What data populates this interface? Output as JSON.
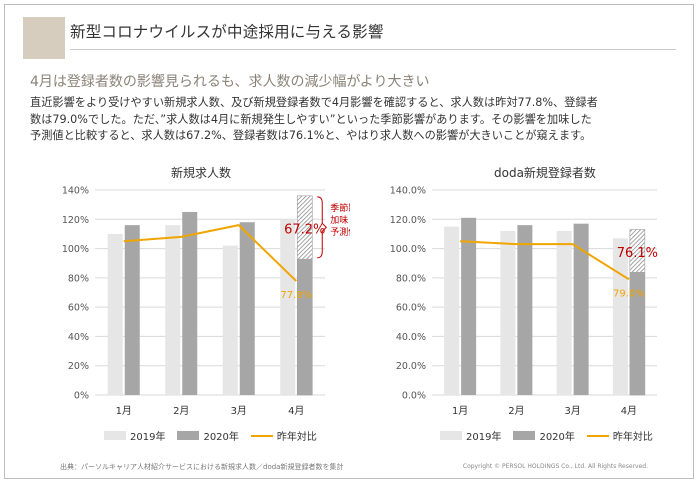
{
  "slide": {
    "title": "新型コロナウイルスが中途採用に与える影響",
    "headline": "4月は登録者数の影響見られるも、求人数の減少幅がより大きい",
    "body_lines": [
      "直近影響をより受けやすい新規求人数、及び新規登録者数で4月影響を確認すると、求人数は昨対77.8%、登録者",
      "数は79.0%でした。ただ、”求人数は4月に新規発生しやすい”といった季節影響があります。その影響を加味した",
      "予測値と比較すると、求人数は67.2%、登録者数は76.1%と、やはり求人数への影響が大きいことが窺えます。"
    ],
    "footnote": "出典：パーソルキャリア人材紹介サービスにおける新規求人数／doda新規登録者数を集計",
    "copyright": "Copyright © PERSOL HOLDINGS Co., Ltd. All Rights Reserved."
  },
  "colors": {
    "series_2019": "#e6e6e6",
    "series_2020": "#a6a6a6",
    "yoy_line": "#f0a500",
    "forecast_highlight": "#c00000",
    "axis_grid": "#d9d9d9"
  },
  "chart_data": [
    {
      "type": "bar",
      "title": "新規求人数",
      "categories": [
        "1月",
        "2月",
        "3月",
        "4月"
      ],
      "y_tick_labels": [
        "0%",
        "20%",
        "40%",
        "60%",
        "80%",
        "100%",
        "120%",
        "140%"
      ],
      "ylim": [
        0,
        140
      ],
      "grid": true,
      "legend": "bottom",
      "series": [
        {
          "name": "2019年",
          "kind": "bar",
          "values": [
            110,
            116,
            102,
            120
          ]
        },
        {
          "name": "2020年",
          "kind": "bar",
          "values": [
            116,
            125,
            118,
            93
          ]
        },
        {
          "name": "昨年対比",
          "kind": "line",
          "values": [
            105,
            108,
            116,
            77.8
          ]
        }
      ],
      "forecast_bar": {
        "category": "4月",
        "value": 136,
        "hatched": true
      },
      "annotations": {
        "yoy_label": "77.8%",
        "forecast_ratio_label": "67.2%",
        "bracket_note_lines": [
          "季節影響を",
          "加味した",
          "予測値"
        ]
      }
    },
    {
      "type": "bar",
      "title": "doda新規登録者数",
      "categories": [
        "1月",
        "2月",
        "3月",
        "4月"
      ],
      "y_tick_labels": [
        "0.0%",
        "20.0%",
        "40.0%",
        "60.0%",
        "80.0%",
        "100.0%",
        "120.0%",
        "140.0%"
      ],
      "ylim": [
        0,
        140
      ],
      "grid": true,
      "legend": "bottom",
      "series": [
        {
          "name": "2019年",
          "kind": "bar",
          "values": [
            115,
            112,
            112,
            107
          ]
        },
        {
          "name": "2020年",
          "kind": "bar",
          "values": [
            121,
            116,
            117,
            84
          ]
        },
        {
          "name": "昨年対比",
          "kind": "line",
          "values": [
            105,
            103,
            103,
            79.0
          ]
        }
      ],
      "forecast_bar": {
        "category": "4月",
        "value": 113,
        "hatched": true
      },
      "annotations": {
        "yoy_label": "79.0%",
        "forecast_ratio_label": "76.1%"
      }
    }
  ]
}
